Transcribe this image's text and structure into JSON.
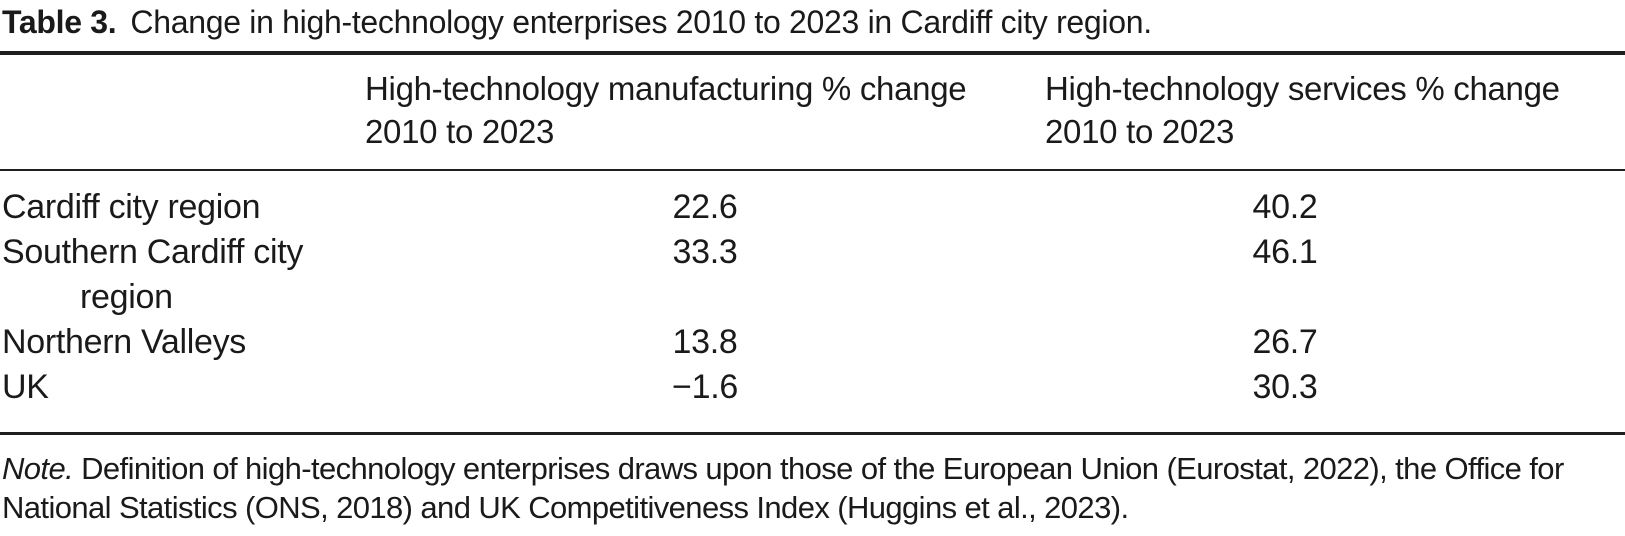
{
  "page": {
    "background": "#ffffff",
    "text_color": "#1a1a1a",
    "rule_color": "#1f1f1f"
  },
  "table": {
    "caption_label": "Table 3.",
    "caption_text": "Change in high-technology enterprises 2010 to 2023 in Cardiff city region.",
    "columns": [
      {
        "label": ""
      },
      {
        "label": "High-technology manufacturing % change 2010 to 2023"
      },
      {
        "label": "High-technology services % change 2010 to 2023"
      }
    ],
    "rows": [
      {
        "region": "Cardiff city region",
        "manufacturing": "22.6",
        "services": "40.2"
      },
      {
        "region": "Southern Cardiff city region",
        "manufacturing": "33.3",
        "services": "46.1"
      },
      {
        "region": "Northern Valleys",
        "manufacturing": "13.8",
        "services": "26.7"
      },
      {
        "region": "UK",
        "manufacturing": "−1.6",
        "services": "30.3"
      }
    ],
    "note_label": "Note.",
    "note_text": "Definition of high-technology enterprises draws upon those of the European Union (Eurostat, 2022), the Office for National Statistics (ONS, 2018) and UK Competitiveness Index (Huggins et al., 2023)."
  },
  "chart_data": {
    "type": "table",
    "title": "Table 3. Change in high-technology enterprises 2010 to 2023 in Cardiff city region.",
    "columns": [
      "",
      "High-technology manufacturing % change 2010 to 2023",
      "High-technology services % change 2010 to 2023"
    ],
    "rows": [
      [
        "Cardiff city region",
        22.6,
        40.2
      ],
      [
        "Southern Cardiff city region",
        33.3,
        46.1
      ],
      [
        "Northern Valleys",
        13.8,
        26.7
      ],
      [
        "UK",
        -1.6,
        30.3
      ]
    ],
    "note": "Note. Definition of high-technology enterprises draws upon those of the European Union (Eurostat, 2022), the Office for National Statistics (ONS, 2018) and UK Competitiveness Index (Huggins et al., 2023)."
  }
}
